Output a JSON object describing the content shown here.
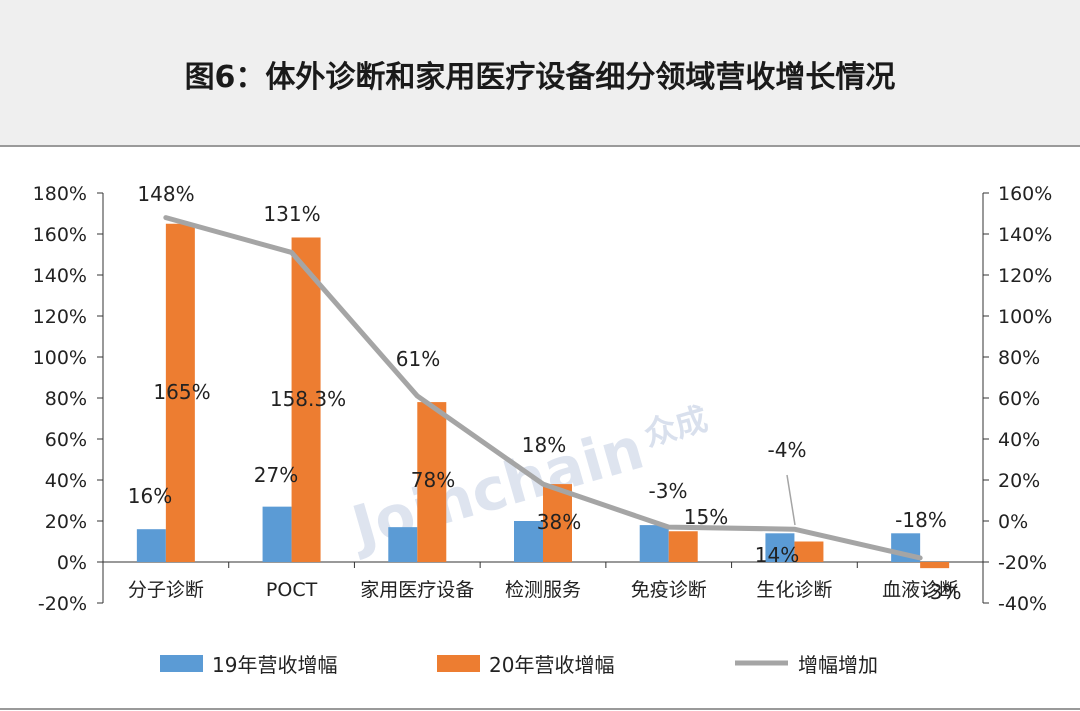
{
  "title": "图6：体外诊断和家用医疗设备细分领域营收增长情况",
  "watermark": {
    "text": "Joinchain",
    "brand": "众成"
  },
  "colors": {
    "s19": "#5b9bd5",
    "s20": "#ed7d31",
    "line": "#a5a5a5"
  },
  "chart_data": {
    "type": "bar",
    "categories": [
      "分子诊断",
      "POCT",
      "家用医疗设备",
      "检测服务",
      "免疫诊断",
      "生化诊断",
      "血液诊断"
    ],
    "series": [
      {
        "name": "19年营收增幅",
        "axis": "left",
        "values": [
          16,
          27,
          17,
          20,
          18,
          14,
          14
        ],
        "labels": [
          "16%",
          "27%",
          "",
          "",
          "",
          "14%",
          ""
        ]
      },
      {
        "name": "20年营收增幅",
        "axis": "left",
        "values": [
          165,
          158.3,
          78,
          38,
          15,
          10,
          -3
        ],
        "labels": [
          "165%",
          "158.3%",
          "78%",
          "38%",
          "15%",
          "",
          "-3%"
        ]
      },
      {
        "name": "增幅增加",
        "type": "line",
        "axis": "right",
        "values": [
          148,
          131,
          61,
          18,
          -3,
          -4,
          -18
        ],
        "labels": [
          "148%",
          "131%",
          "61%",
          "18%",
          "-3%",
          "-4%",
          "-18%"
        ]
      }
    ],
    "y_left": {
      "min": -20,
      "max": 180,
      "step": 20,
      "ticks": [
        "-20%",
        "0%",
        "20%",
        "40%",
        "60%",
        "80%",
        "100%",
        "120%",
        "140%",
        "160%",
        "180%"
      ]
    },
    "y_right": {
      "min": -40,
      "max": 160,
      "step": 20,
      "ticks": [
        "-40%",
        "-20%",
        "0%",
        "20%",
        "40%",
        "60%",
        "80%",
        "100%",
        "120%",
        "140%",
        "160%"
      ]
    },
    "legend_position": "bottom",
    "grid": false
  }
}
